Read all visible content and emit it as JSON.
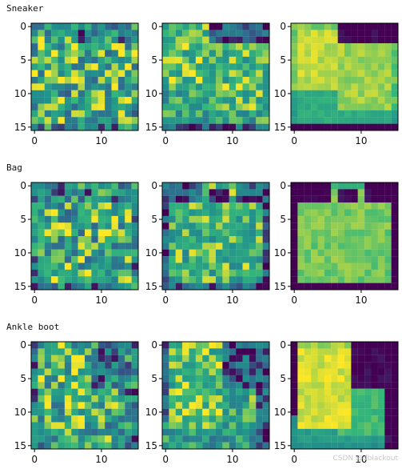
{
  "watermark": "CSDN @dblackout",
  "colors": {
    "viridis": [
      "#440154",
      "#31688e",
      "#21918c",
      "#35b779",
      "#fde725"
    ],
    "frame": "#000000",
    "text": "#111111"
  },
  "chart_data": {
    "type": "heatmap",
    "colormap": "viridis",
    "grid": false,
    "image_size": [
      16,
      16
    ],
    "xlim": [
      -0.5,
      15.5
    ],
    "ylim": [
      15.5,
      -0.5
    ],
    "x_ticks": [
      0,
      10
    ],
    "y_ticks": [
      0,
      5,
      10,
      15
    ],
    "rows": [
      {
        "label": "Sneaker",
        "panels": [
          {
            "kind": "noisy"
          },
          {
            "kind": "less-noisy"
          },
          {
            "kind": "clean"
          }
        ]
      },
      {
        "label": "Bag",
        "panels": [
          {
            "kind": "noisy"
          },
          {
            "kind": "less-noisy"
          },
          {
            "kind": "clean"
          }
        ]
      },
      {
        "label": "Ankle boot",
        "panels": [
          {
            "kind": "noisy"
          },
          {
            "kind": "less-noisy"
          },
          {
            "kind": "clean"
          }
        ]
      }
    ]
  }
}
